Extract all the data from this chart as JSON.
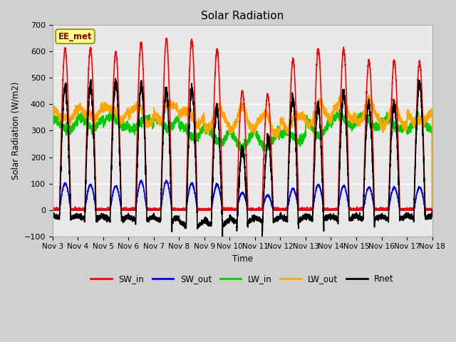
{
  "title": "Solar Radiation",
  "ylabel": "Solar Radiation (W/m2)",
  "xlabel": "Time",
  "ylim": [
    -100,
    700
  ],
  "xlim": [
    0,
    15
  ],
  "fig_bg_color": "#d0d0d0",
  "plot_bg_color": "#e8e8e8",
  "x_tick_labels": [
    "Nov 3",
    "Nov 4",
    "Nov 5",
    "Nov 6",
    "Nov 7",
    "Nov 8",
    "Nov 9",
    "Nov 10",
    "Nov 11",
    "Nov 12",
    "Nov 13",
    "Nov 14",
    "Nov 15",
    "Nov 16",
    "Nov 17",
    "Nov 18"
  ],
  "annotation_text": "EE_met",
  "annotation_color": "#8B0000",
  "annotation_bg": "#FFFF88",
  "series": {
    "SW_in": {
      "color": "#FF0000",
      "lw": 1.2
    },
    "SW_out": {
      "color": "#0000FF",
      "lw": 1.2
    },
    "LW_in": {
      "color": "#00CC00",
      "lw": 1.2
    },
    "LW_out": {
      "color": "#FFA500",
      "lw": 1.2
    },
    "Rnet": {
      "color": "#000000",
      "lw": 1.2
    }
  },
  "n_days": 15,
  "pts_per_day": 288,
  "sw_peaks": [
    610,
    610,
    600,
    635,
    645,
    640,
    605,
    450,
    435,
    570,
    610,
    610,
    565,
    565,
    560
  ],
  "sw_out_peaks": [
    100,
    95,
    90,
    108,
    108,
    100,
    95,
    65,
    55,
    80,
    95,
    90,
    85,
    85,
    85
  ],
  "lw_in_bases": [
    320,
    330,
    335,
    325,
    330,
    310,
    295,
    280,
    280,
    295,
    325,
    340,
    335,
    325,
    325
  ],
  "lw_out_bases": [
    350,
    360,
    360,
    355,
    368,
    345,
    335,
    330,
    318,
    328,
    355,
    375,
    358,
    342,
    338
  ],
  "night_rnet": [
    -40,
    -45,
    -50,
    -50,
    -55,
    -80,
    -75,
    -60,
    -55,
    -50,
    -45,
    -45,
    -45,
    -45,
    -40
  ]
}
